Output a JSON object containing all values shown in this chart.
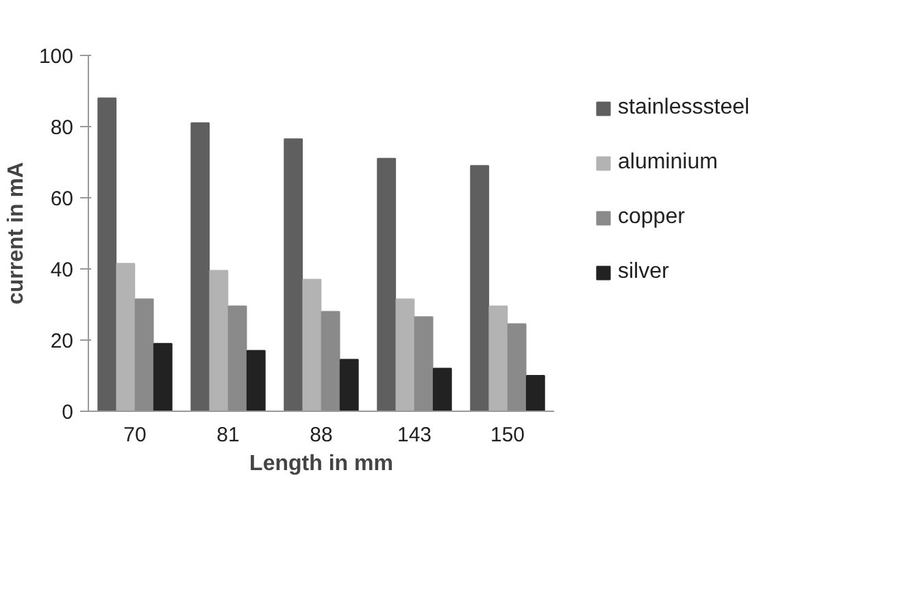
{
  "chart_data": {
    "type": "bar",
    "xlabel": "Length in mm",
    "ylabel": "current in mA",
    "categories": [
      "70",
      "81",
      "88",
      "143",
      "150"
    ],
    "series": [
      {
        "name": "stainlesssteel",
        "color": "#5f5f5f",
        "values": [
          88,
          81,
          76.5,
          71,
          69
        ]
      },
      {
        "name": "aluminium",
        "color": "#b3b3b3",
        "values": [
          41.5,
          39.5,
          37,
          31.5,
          29.5
        ]
      },
      {
        "name": "copper",
        "color": "#8a8a8a",
        "values": [
          31.5,
          29.5,
          28,
          26.5,
          24.5
        ]
      },
      {
        "name": "silver",
        "color": "#222222",
        "values": [
          19,
          17,
          14.5,
          12,
          10
        ]
      }
    ],
    "ylim": [
      0,
      100
    ],
    "yticks": [
      0,
      20,
      40,
      60,
      80,
      100
    ],
    "grid": false,
    "legend": "right"
  }
}
